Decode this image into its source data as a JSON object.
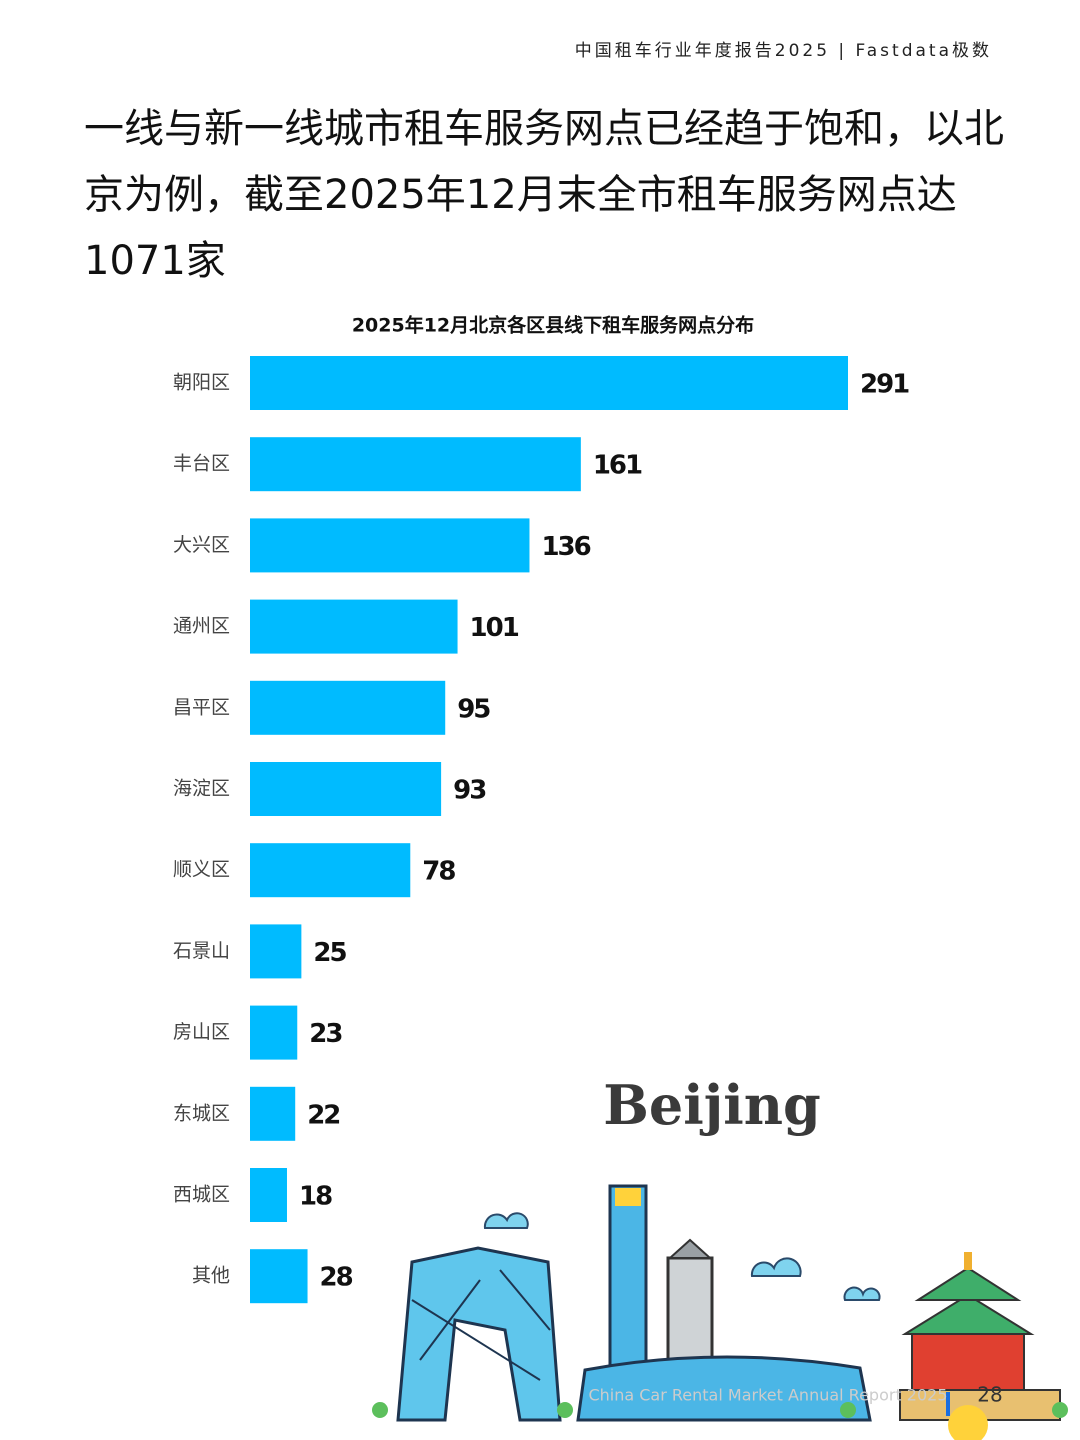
{
  "header": "中国租车行业年度报告2025 | Fastdata极数",
  "headline": "一线与新一线城市租车服务网点已经趋于饱和，以北京为例，截至2025年12月末全市租车服务网点达1071家",
  "chart_data": {
    "type": "bar",
    "orientation": "horizontal",
    "title": "2025年12月北京各区县线下租车服务网点分布",
    "categories": [
      "朝阳区",
      "丰台区",
      "大兴区",
      "通州区",
      "昌平区",
      "海淀区",
      "顺义区",
      "石景山",
      "房山区",
      "东城区",
      "西城区",
      "其他"
    ],
    "values": [
      291,
      161,
      136,
      101,
      95,
      93,
      78,
      25,
      23,
      22,
      18,
      28
    ],
    "color": "#00bbff"
  },
  "illustration_label": "Beijing",
  "footer": "China Car Rental Market Annual Report 2025",
  "page_number": "28"
}
